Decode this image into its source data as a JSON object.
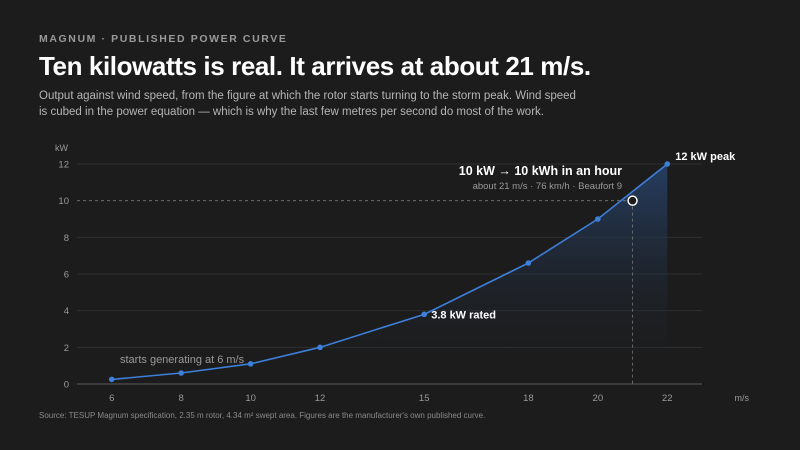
{
  "kicker": "MAGNUM · PUBLISHED POWER CURVE",
  "headline": "Ten kilowatts is real. It arrives at about 21 m/s.",
  "dek": "Output against wind speed, from the figure at which the rotor starts turning to the storm peak. Wind speed is cubed in the power equation — which is why the last few metres per second do most of the work.",
  "source": "Source: TESUP Magnum specification, 2.35 m rotor, 4.34 m² swept area. Figures are the manufacturer's own published curve.",
  "colors": {
    "line": "#3d7fd9",
    "area_top": "#27446e",
    "grid": "#2e2e2e",
    "reference": "#7a7a7a"
  },
  "chart_data": {
    "type": "area",
    "x": [
      6,
      8,
      10,
      12,
      15,
      18,
      20,
      22
    ],
    "series": [
      {
        "values": [
          0.25,
          0.6,
          1.1,
          2.0,
          3.8,
          6.6,
          9.0,
          12.0
        ]
      }
    ],
    "xticks": [
      6,
      8,
      10,
      12,
      15,
      18,
      20,
      22
    ],
    "yticks": [
      0,
      2,
      4,
      6,
      8,
      10,
      12
    ],
    "xlim": [
      5,
      23
    ],
    "ylim": [
      0,
      12
    ],
    "xlabel": "m/s",
    "ylabel": "kW",
    "grid": true,
    "reference_line": {
      "y": 10
    },
    "highlight_point": {
      "x": 21,
      "y": 10
    },
    "annotations": {
      "peak": "12 kW peak",
      "rated": "3.8 kW rated",
      "start": "starts generating at 6 m/s",
      "ten_kw_title": "10 kW → 10 kWh in an hour",
      "ten_kw_sub": "about 21 m/s · 76 km/h · Beaufort 9"
    }
  }
}
